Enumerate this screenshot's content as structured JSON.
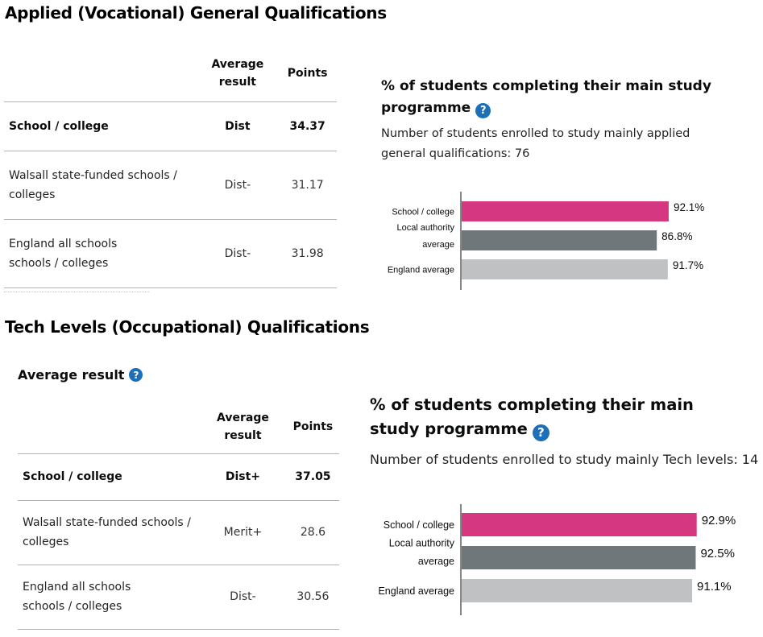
{
  "sections": [
    {
      "title": "Applied (Vocational) General Qualifications",
      "table": {
        "headers": {
          "result": "Average result",
          "points": "Points"
        },
        "rows": [
          {
            "label": "School / college",
            "result": "Dist",
            "points": "34.37"
          },
          {
            "label": "Walsall state-funded schools / colleges",
            "result": "Dist-",
            "points": "31.17"
          },
          {
            "label": "England all schools schools / colleges",
            "result": "Dist-",
            "points": "31.98"
          }
        ]
      },
      "chart": {
        "title": "% of students completing their main study programme",
        "subtitle": "Number of students enrolled to study mainly applied general qualifications: 76"
      }
    },
    {
      "title": "Tech Levels (Occupational) Qualifications",
      "subheading": "Average result",
      "table": {
        "headers": {
          "result": "Average result",
          "points": "Points"
        },
        "rows": [
          {
            "label": "School / college",
            "result": "Dist+",
            "points": "37.05"
          },
          {
            "label": "Walsall state-funded schools / colleges",
            "result": "Merit+",
            "points": "28.6"
          },
          {
            "label": "England all schools schools / colleges",
            "result": "Dist-",
            "points": "30.56"
          }
        ]
      },
      "chart": {
        "title": "% of students completing their main study programme",
        "subtitle": "Number of students enrolled to study mainly Tech levels: 14"
      }
    }
  ],
  "help_glyph": "?",
  "chart_data": [
    {
      "type": "bar",
      "orientation": "horizontal",
      "title": "% of students completing their main study programme",
      "categories": [
        "School / college",
        "Local authority average",
        "England average"
      ],
      "values": [
        92.1,
        86.8,
        91.7
      ],
      "value_suffix": "%",
      "colors": [
        "#d53880",
        "#6f777b",
        "#bfc1c3"
      ],
      "xlim": [
        0,
        100
      ],
      "grid": false
    },
    {
      "type": "bar",
      "orientation": "horizontal",
      "title": "% of students completing their main study programme",
      "categories": [
        "School / college",
        "Local authority average",
        "England average"
      ],
      "values": [
        92.9,
        92.5,
        91.1
      ],
      "value_suffix": "%",
      "colors": [
        "#d53880",
        "#6f777b",
        "#bfc1c3"
      ],
      "xlim": [
        0,
        100
      ],
      "grid": false
    }
  ]
}
